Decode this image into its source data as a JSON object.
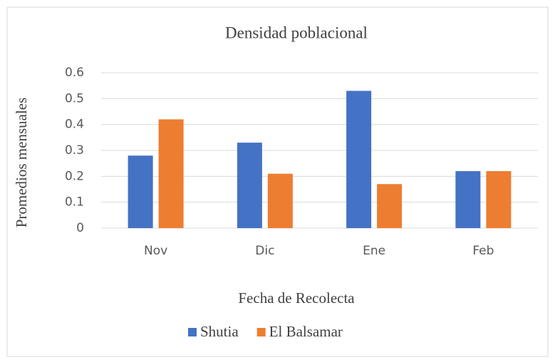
{
  "chart_data": {
    "type": "bar",
    "title": "Densidad poblacional",
    "x_label": "Fecha de Recolecta",
    "y_label": "Promedios mensuales",
    "categories": [
      "Nov",
      "Dic",
      "Ene",
      "Feb"
    ],
    "series": [
      {
        "name": "Shutia",
        "color": "#4472c4",
        "values": [
          0.28,
          0.33,
          0.53,
          0.22
        ]
      },
      {
        "name": "El Balsamar",
        "color": "#ed7d31",
        "values": [
          0.42,
          0.21,
          0.17,
          0.22
        ]
      }
    ],
    "ylim": [
      0,
      0.6
    ],
    "yticks": [
      0,
      0.1,
      0.2,
      0.3,
      0.4,
      0.5,
      0.6
    ],
    "grid": true,
    "legend": "bottom"
  }
}
